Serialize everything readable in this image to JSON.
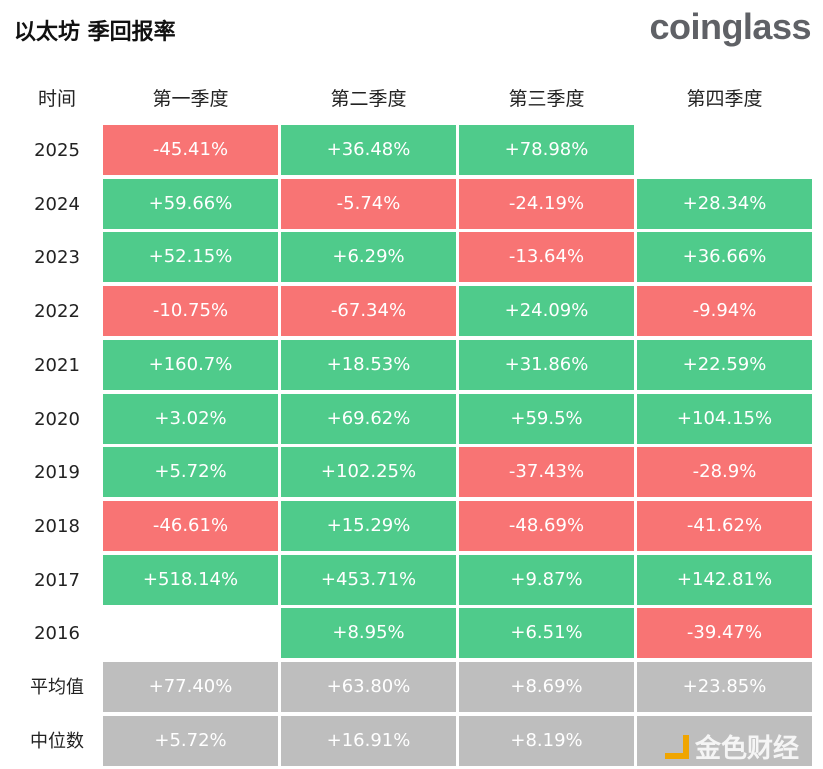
{
  "title": "以太坊 季回报率",
  "logo": "coinglass",
  "watermark": "金色财经",
  "chart_data": {
    "type": "table",
    "title": "以太坊 季回报率",
    "row_header": "时间",
    "columns": [
      "第一季度",
      "第二季度",
      "第三季度",
      "第四季度"
    ],
    "rows": [
      {
        "label": "2025",
        "values": [
          "-45.41%",
          "+36.48%",
          "+78.98%",
          ""
        ]
      },
      {
        "label": "2024",
        "values": [
          "+59.66%",
          "-5.74%",
          "-24.19%",
          "+28.34%"
        ]
      },
      {
        "label": "2023",
        "values": [
          "+52.15%",
          "+6.29%",
          "-13.64%",
          "+36.66%"
        ]
      },
      {
        "label": "2022",
        "values": [
          "-10.75%",
          "-67.34%",
          "+24.09%",
          "-9.94%"
        ]
      },
      {
        "label": "2021",
        "values": [
          "+160.7%",
          "+18.53%",
          "+31.86%",
          "+22.59%"
        ]
      },
      {
        "label": "2020",
        "values": [
          "+3.02%",
          "+69.62%",
          "+59.5%",
          "+104.15%"
        ]
      },
      {
        "label": "2019",
        "values": [
          "+5.72%",
          "+102.25%",
          "-37.43%",
          "-28.9%"
        ]
      },
      {
        "label": "2018",
        "values": [
          "-46.61%",
          "+15.29%",
          "-48.69%",
          "-41.62%"
        ]
      },
      {
        "label": "2017",
        "values": [
          "+518.14%",
          "+453.71%",
          "+9.87%",
          "+142.81%"
        ]
      },
      {
        "label": "2016",
        "values": [
          "",
          "+8.95%",
          "+6.51%",
          "-39.47%"
        ]
      },
      {
        "label": "平均值",
        "values": [
          "+77.40%",
          "+63.80%",
          "+8.69%",
          "+23.85%"
        ],
        "summary": true
      },
      {
        "label": "中位数",
        "values": [
          "+5.72%",
          "+16.91%",
          "+8.19%",
          ""
        ],
        "summary": true
      }
    ],
    "colors": {
      "positive": "#4fcb8b",
      "negative": "#f87474",
      "summary": "#bebebe"
    }
  }
}
